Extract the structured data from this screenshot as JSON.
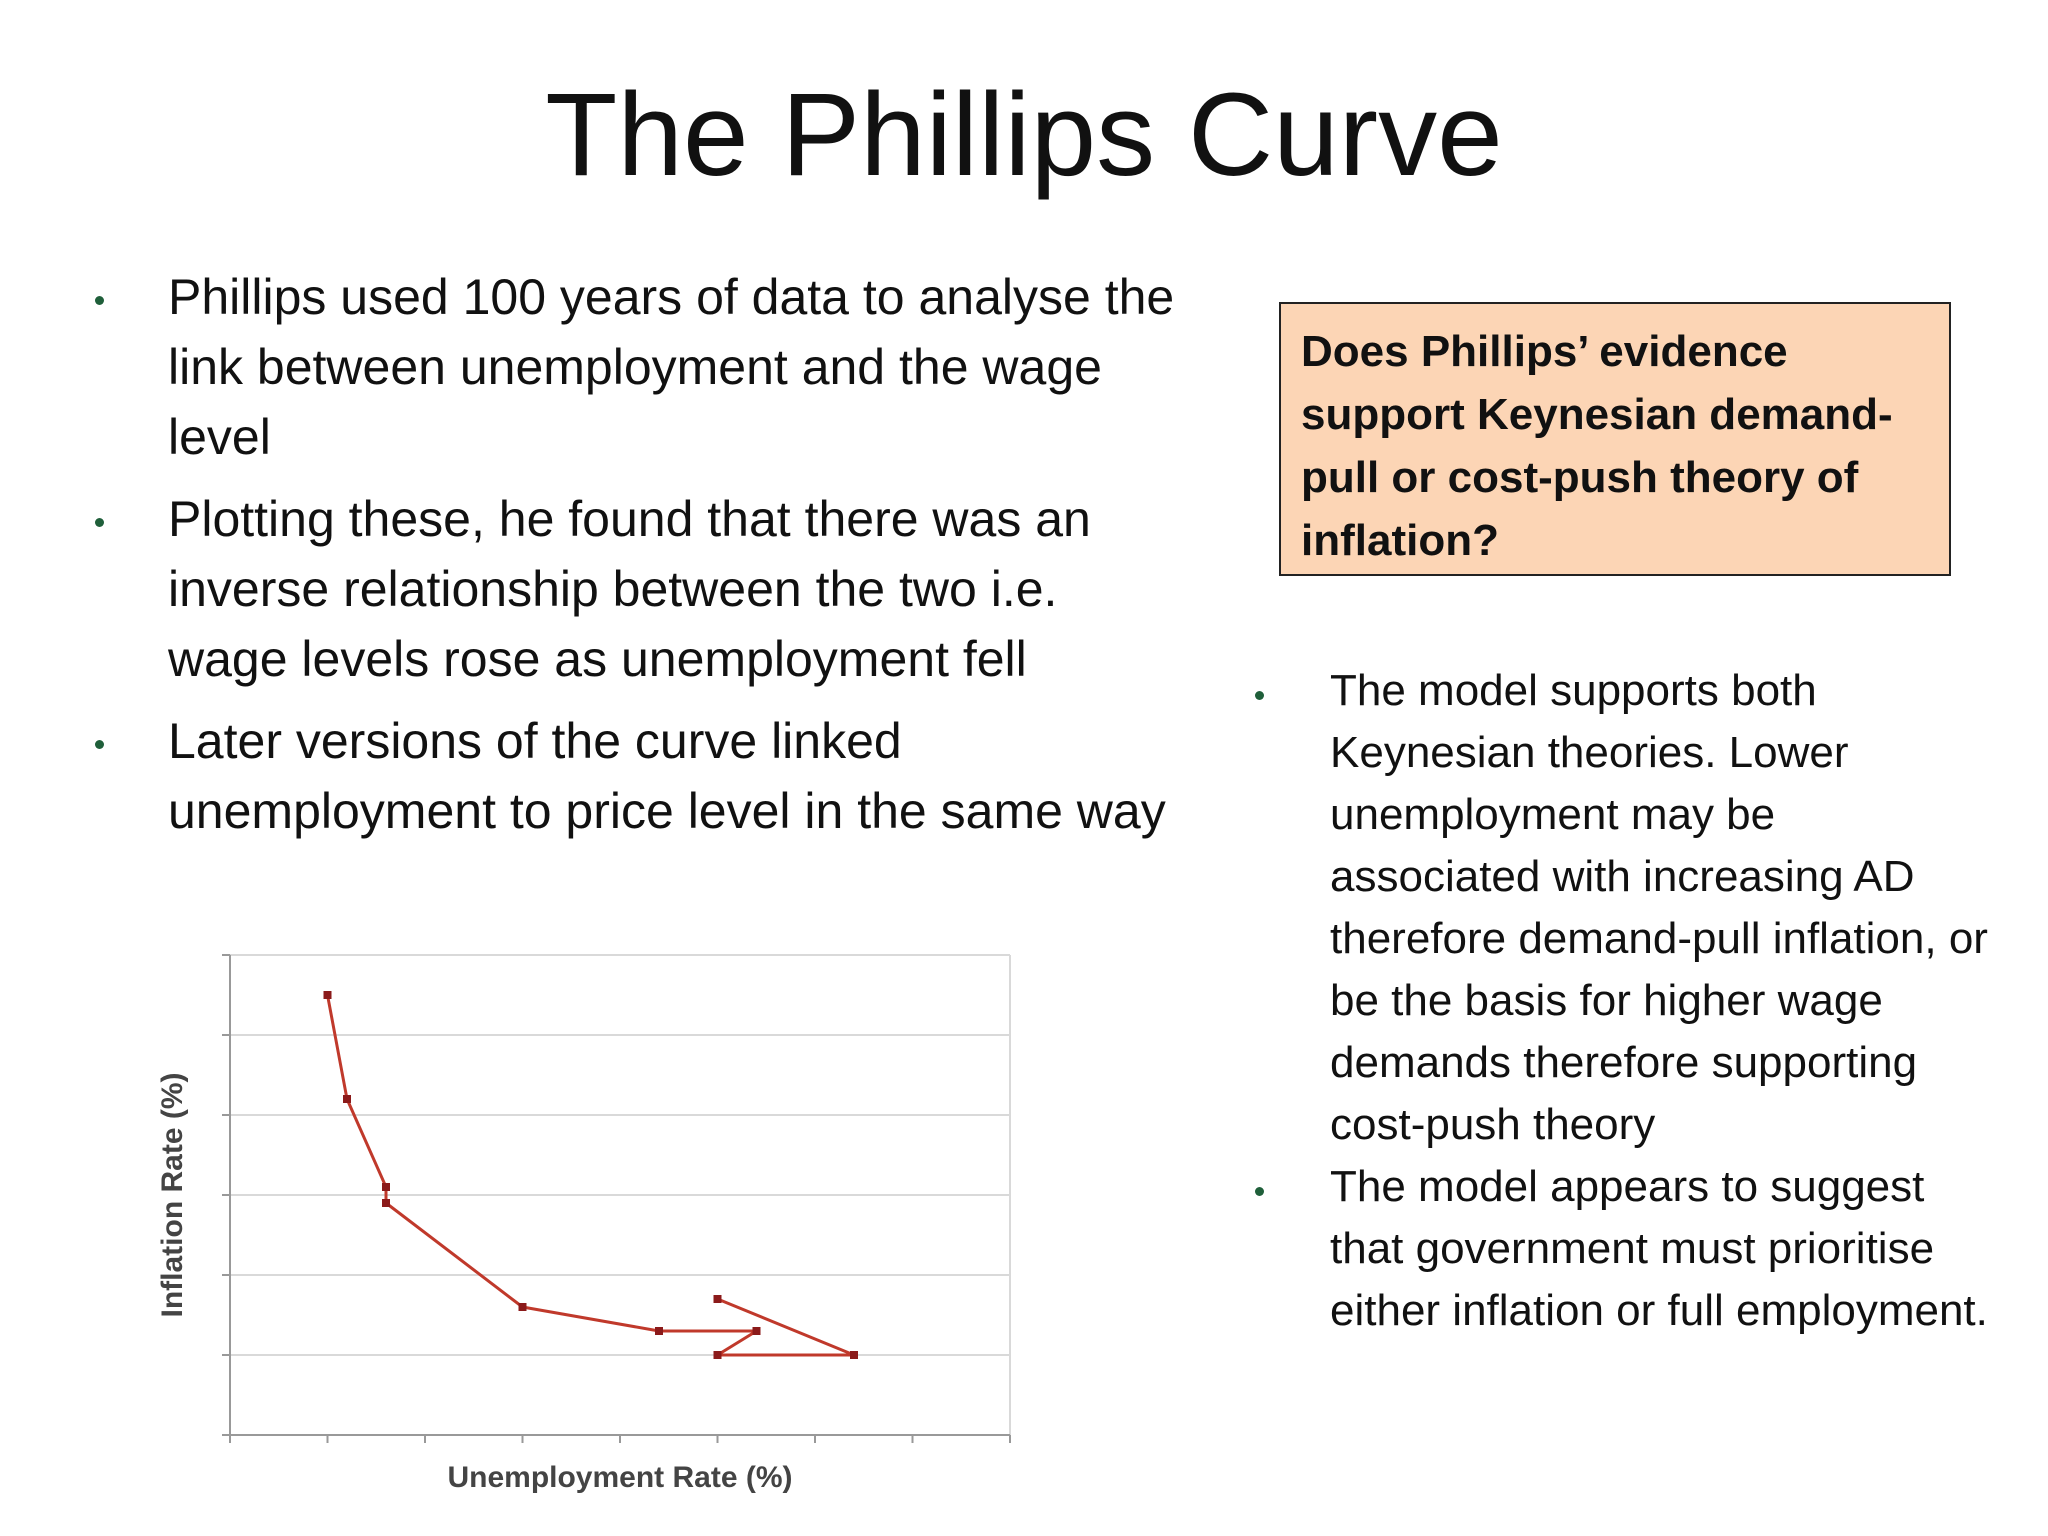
{
  "slide": {
    "title": "The Phillips Curve"
  },
  "left_bullets": [
    "Phillips used 100 years of data to analyse the link between unemployment and the wage level",
    "Plotting these, he found that there was an inverse relationship between the two i.e. wage levels rose as unemployment fell",
    "Later versions of the curve linked unemployment to price level in the same way"
  ],
  "question_box": {
    "text": "Does Phillips’ evidence support Keynesian demand-pull or cost-push theory of inflation?",
    "background": "#fcd5b5"
  },
  "right_bullets": [
    "The model supports both Keynesian theories. Lower unemployment may be associated with increasing AD therefore demand-pull inflation, or be the basis for higher wage demands therefore supporting cost-push theory",
    "The model appears to suggest that government must prioritise either inflation or full employment."
  ],
  "colors": {
    "bullet": "#1f5f3a",
    "line": "#c0392b",
    "marker": "#8b1a1a",
    "grid": "#d9d9d9"
  },
  "chart_data": {
    "type": "line",
    "title": "",
    "xlabel": "Unemployment Rate (%)",
    "ylabel": "Inflation Rate (%)",
    "xlim": [
      3,
      7
    ],
    "ylim": [
      0,
      6
    ],
    "grid": true,
    "points": [
      {
        "x": 3.5,
        "y": 5.5
      },
      {
        "x": 3.6,
        "y": 4.2
      },
      {
        "x": 3.8,
        "y": 3.1
      },
      {
        "x": 3.8,
        "y": 2.9
      },
      {
        "x": 4.5,
        "y": 1.6
      },
      {
        "x": 5.2,
        "y": 1.3
      },
      {
        "x": 5.7,
        "y": 1.3
      },
      {
        "x": 5.5,
        "y": 1.0
      },
      {
        "x": 6.2,
        "y": 1.0
      },
      {
        "x": 5.5,
        "y": 1.7
      }
    ]
  }
}
